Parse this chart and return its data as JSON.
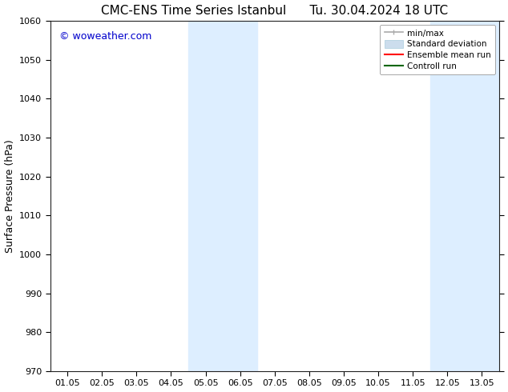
{
  "title_left": "CMC-ENS Time Series Istanbul",
  "title_right": "Tu. 30.04.2024 18 UTC",
  "ylabel": "Surface Pressure (hPa)",
  "ylim": [
    970,
    1060
  ],
  "yticks": [
    970,
    980,
    990,
    1000,
    1010,
    1020,
    1030,
    1040,
    1050,
    1060
  ],
  "xtick_labels": [
    "01.05",
    "02.05",
    "03.05",
    "04.05",
    "05.05",
    "06.05",
    "07.05",
    "08.05",
    "09.05",
    "10.05",
    "11.05",
    "12.05",
    "13.05"
  ],
  "xtick_positions": [
    0,
    1,
    2,
    3,
    4,
    5,
    6,
    7,
    8,
    9,
    10,
    11,
    12
  ],
  "xlim": [
    -0.5,
    12.5
  ],
  "shaded_bands": [
    {
      "x_start": 3.5,
      "x_end": 5.5,
      "color": "#ddeeff"
    },
    {
      "x_start": 10.5,
      "x_end": 12.5,
      "color": "#ddeeff"
    }
  ],
  "watermark": "© woweather.com",
  "watermark_color": "#0000cc",
  "bg_color": "#ffffff",
  "plot_bg_color": "#ffffff",
  "legend_items": [
    {
      "label": "min/max",
      "color": "#aaaaaa"
    },
    {
      "label": "Standard deviation",
      "color": "#ccdded"
    },
    {
      "label": "Ensemble mean run",
      "color": "#ff0000"
    },
    {
      "label": "Controll run",
      "color": "#006600"
    }
  ],
  "title_fontsize": 11,
  "axis_label_fontsize": 9,
  "tick_fontsize": 8,
  "legend_fontsize": 7.5,
  "watermark_fontsize": 9
}
